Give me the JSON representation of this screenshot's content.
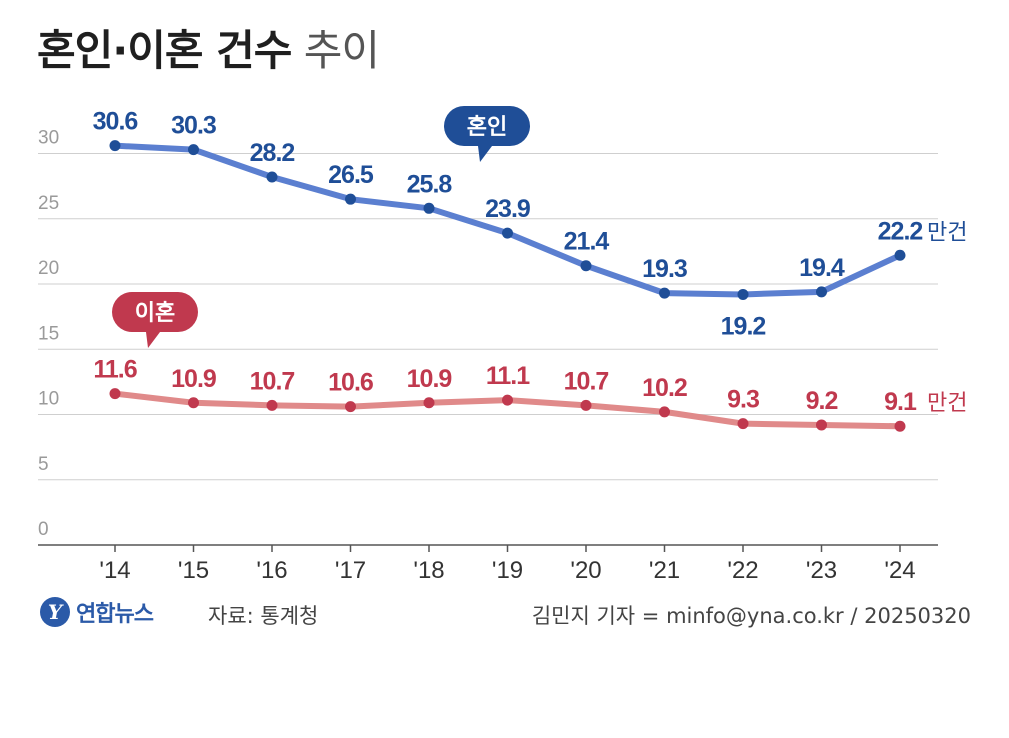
{
  "title": {
    "bold": "혼인·이혼 건수",
    "light": "추이"
  },
  "chart_data": {
    "type": "line",
    "categories": [
      "'14",
      "'15",
      "'16",
      "'17",
      "'18",
      "'19",
      "'20",
      "'21",
      "'22",
      "'23",
      "'24"
    ],
    "ylim": [
      0,
      30
    ],
    "yticks": [
      0,
      5,
      10,
      15,
      20,
      25,
      30
    ],
    "unit": "만건",
    "series": [
      {
        "name": "혼인",
        "color": "#5b7fd0",
        "label_color": "#1f4e97",
        "values": [
          30.6,
          30.3,
          28.2,
          26.5,
          25.8,
          23.9,
          21.4,
          19.3,
          19.2,
          19.4,
          22.2
        ]
      },
      {
        "name": "이혼",
        "color": "#e08a8a",
        "label_color": "#c0394e",
        "values": [
          11.6,
          10.9,
          10.7,
          10.6,
          10.9,
          11.1,
          10.7,
          10.2,
          9.3,
          9.2,
          9.1
        ]
      }
    ],
    "grid": true
  },
  "footer": {
    "logo_mark": "Y",
    "logo_text": "연합뉴스",
    "source": "자료: 통계청",
    "byline": "김민지 기자 = minfo@yna.co.kr / 20250320"
  }
}
